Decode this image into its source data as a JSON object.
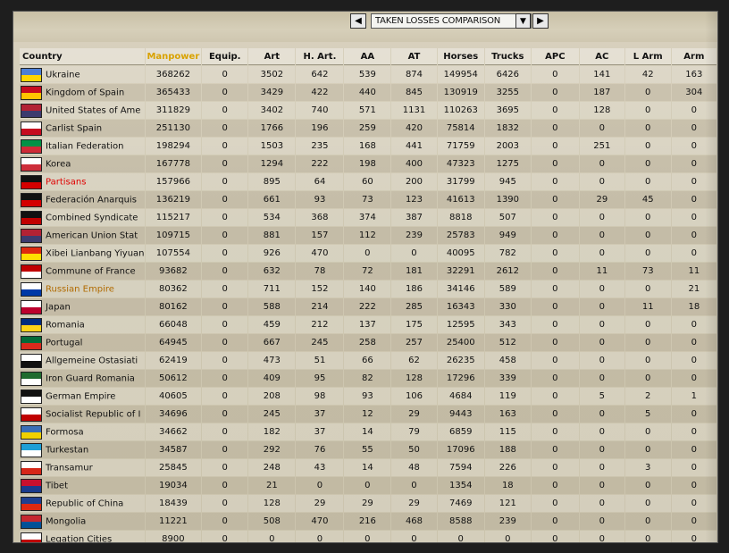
{
  "toolbar": {
    "prev_icon": "chevron-left-icon",
    "next_icon": "chevron-right-icon",
    "dropdown_icon": "chevron-down-icon",
    "selected_view": "TAKEN LOSSES COMPARISON"
  },
  "columns": [
    "Country",
    "Manpower",
    "Equip.",
    "Art",
    "H. Art.",
    "AA",
    "AT",
    "Horses",
    "Trucks",
    "APC",
    "AC",
    "L Arm",
    "Arm"
  ],
  "active_column": "Manpower",
  "rows": [
    {
      "country": "Ukraine",
      "flag": "#4d7fd6,#ffd500",
      "cells": [
        "368262",
        "0",
        "3502",
        "642",
        "539",
        "874",
        "149954",
        "6426",
        "0",
        "141",
        "42",
        "163"
      ]
    },
    {
      "country": "Kingdom of Spain",
      "flag": "#c60b1e,#ffc400",
      "cells": [
        "365433",
        "0",
        "3429",
        "422",
        "440",
        "845",
        "130919",
        "3255",
        "0",
        "187",
        "0",
        "304"
      ]
    },
    {
      "country": "United States of Ame",
      "flag": "#b22234,#3c3b6e",
      "cells": [
        "311829",
        "0",
        "3402",
        "740",
        "571",
        "1131",
        "110263",
        "3695",
        "0",
        "128",
        "0",
        "0"
      ]
    },
    {
      "country": "Carlist Spain",
      "flag": "#ffffff,#c60b1e",
      "cells": [
        "251130",
        "0",
        "1766",
        "196",
        "259",
        "420",
        "75814",
        "1832",
        "0",
        "0",
        "0",
        "0"
      ]
    },
    {
      "country": "Italian Federation",
      "flag": "#009246,#ce2b37",
      "cells": [
        "198294",
        "0",
        "1503",
        "235",
        "168",
        "441",
        "71759",
        "2003",
        "0",
        "251",
        "0",
        "0"
      ]
    },
    {
      "country": "Korea",
      "flag": "#ffffff,#cd2e3a",
      "cells": [
        "167778",
        "0",
        "1294",
        "222",
        "198",
        "400",
        "47323",
        "1275",
        "0",
        "0",
        "0",
        "0"
      ]
    },
    {
      "country": "Partisans",
      "flag": "#111111,#d40000",
      "cells": [
        "157966",
        "0",
        "895",
        "64",
        "60",
        "200",
        "31799",
        "945",
        "0",
        "0",
        "0",
        "0"
      ],
      "style": "red"
    },
    {
      "country": "Federación Anarquis",
      "flag": "#111111,#d40000",
      "cells": [
        "136219",
        "0",
        "661",
        "93",
        "73",
        "123",
        "41613",
        "1390",
        "0",
        "29",
        "45",
        "0"
      ]
    },
    {
      "country": "Combined Syndicate",
      "flag": "#111111,#c00000",
      "cells": [
        "115217",
        "0",
        "534",
        "368",
        "374",
        "387",
        "8818",
        "507",
        "0",
        "0",
        "0",
        "0"
      ]
    },
    {
      "country": "American Union Stat",
      "flag": "#b22234,#3c3b6e",
      "cells": [
        "109715",
        "0",
        "881",
        "157",
        "112",
        "239",
        "25783",
        "949",
        "0",
        "0",
        "0",
        "0"
      ]
    },
    {
      "country": "Xibei Lianbang Yiyuan",
      "flag": "#de2910,#ffde00",
      "cells": [
        "107554",
        "0",
        "926",
        "470",
        "0",
        "0",
        "40095",
        "782",
        "0",
        "0",
        "0",
        "0"
      ]
    },
    {
      "country": "Commune of France",
      "flag": "#c00000,#ffffff",
      "cells": [
        "93682",
        "0",
        "632",
        "78",
        "72",
        "181",
        "32291",
        "2612",
        "0",
        "11",
        "73",
        "11"
      ]
    },
    {
      "country": "Russian Empire",
      "flag": "#ffffff,#0039a6",
      "cells": [
        "80362",
        "0",
        "711",
        "152",
        "140",
        "186",
        "34146",
        "589",
        "0",
        "0",
        "0",
        "21"
      ],
      "style": "gold"
    },
    {
      "country": "Japan",
      "flag": "#ffffff,#bc002d",
      "cells": [
        "80162",
        "0",
        "588",
        "214",
        "222",
        "285",
        "16343",
        "330",
        "0",
        "0",
        "11",
        "18"
      ]
    },
    {
      "country": "Romania",
      "flag": "#002b7f,#fcd116",
      "cells": [
        "66048",
        "0",
        "459",
        "212",
        "137",
        "175",
        "12595",
        "343",
        "0",
        "0",
        "0",
        "0"
      ]
    },
    {
      "country": "Portugal",
      "flag": "#046a38,#da291c",
      "cells": [
        "64945",
        "0",
        "667",
        "245",
        "258",
        "257",
        "25400",
        "512",
        "0",
        "0",
        "0",
        "0"
      ]
    },
    {
      "country": "Allgemeine Ostasiati",
      "flag": "#ffffff,#111111",
      "cells": [
        "62419",
        "0",
        "473",
        "51",
        "66",
        "62",
        "26235",
        "458",
        "0",
        "0",
        "0",
        "0"
      ]
    },
    {
      "country": "Iron Guard Romania",
      "flag": "#1e6b2e,#ffffff",
      "cells": [
        "50612",
        "0",
        "409",
        "95",
        "82",
        "128",
        "17296",
        "339",
        "0",
        "0",
        "0",
        "0"
      ]
    },
    {
      "country": "German Empire",
      "flag": "#111111,#ffffff",
      "cells": [
        "40605",
        "0",
        "208",
        "98",
        "93",
        "106",
        "4684",
        "119",
        "0",
        "5",
        "2",
        "1"
      ]
    },
    {
      "country": "Socialist Republic of I",
      "flag": "#ffffff,#c00000",
      "cells": [
        "34696",
        "0",
        "245",
        "37",
        "12",
        "29",
        "9443",
        "163",
        "0",
        "0",
        "5",
        "0"
      ]
    },
    {
      "country": "Formosa",
      "flag": "#3b6fb6,#f0d000",
      "cells": [
        "34662",
        "0",
        "182",
        "37",
        "14",
        "79",
        "6859",
        "115",
        "0",
        "0",
        "0",
        "0"
      ]
    },
    {
      "country": "Turkestan",
      "flag": "#1e9fd6,#ffffff",
      "cells": [
        "34587",
        "0",
        "292",
        "76",
        "55",
        "50",
        "17096",
        "188",
        "0",
        "0",
        "0",
        "0"
      ]
    },
    {
      "country": "Transamur",
      "flag": "#ffffff,#d62718",
      "cells": [
        "25845",
        "0",
        "248",
        "43",
        "14",
        "48",
        "7594",
        "226",
        "0",
        "0",
        "3",
        "0"
      ]
    },
    {
      "country": "Tibet",
      "flag": "#c8102e,#1a3a8c",
      "cells": [
        "19034",
        "0",
        "21",
        "0",
        "0",
        "0",
        "1354",
        "18",
        "0",
        "0",
        "0",
        "0"
      ]
    },
    {
      "country": "Republic of China",
      "flag": "#1f3f8f,#de2910",
      "cells": [
        "18439",
        "0",
        "128",
        "29",
        "29",
        "29",
        "7469",
        "121",
        "0",
        "0",
        "0",
        "0"
      ]
    },
    {
      "country": "Mongolia",
      "flag": "#c4272f,#015197",
      "cells": [
        "11221",
        "0",
        "508",
        "470",
        "216",
        "468",
        "8588",
        "239",
        "0",
        "0",
        "0",
        "0"
      ]
    },
    {
      "country": "Legation Cities",
      "flag": "#ffffff,#c00000",
      "cells": [
        "8900",
        "0",
        "0",
        "0",
        "0",
        "0",
        "0",
        "0",
        "0",
        "0",
        "0",
        "0"
      ]
    }
  ]
}
